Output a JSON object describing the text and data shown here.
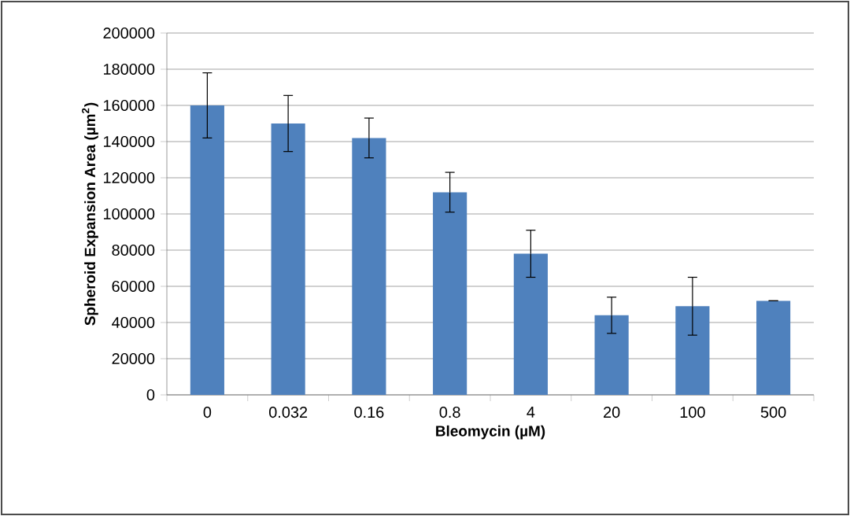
{
  "chart_data": {
    "type": "bar",
    "xlabel": "Bleomycin (µM)",
    "ylabel": "Spheroid Expansion Area (µm$^{2}$)",
    "categories": [
      "0",
      "0.032",
      "0.16",
      "0.8",
      "4",
      "20",
      "100",
      "500"
    ],
    "values": [
      160000,
      150000,
      142000,
      112000,
      78000,
      44000,
      49000,
      52000
    ],
    "errors": [
      18000,
      15500,
      11000,
      11000,
      13000,
      10000,
      16000,
      null
    ],
    "color": "#4f81bd",
    "ylim": [
      0,
      200000
    ],
    "yticks": [
      0,
      20000,
      40000,
      60000,
      80000,
      100000,
      120000,
      140000,
      160000,
      180000,
      200000
    ],
    "grid": "y"
  }
}
